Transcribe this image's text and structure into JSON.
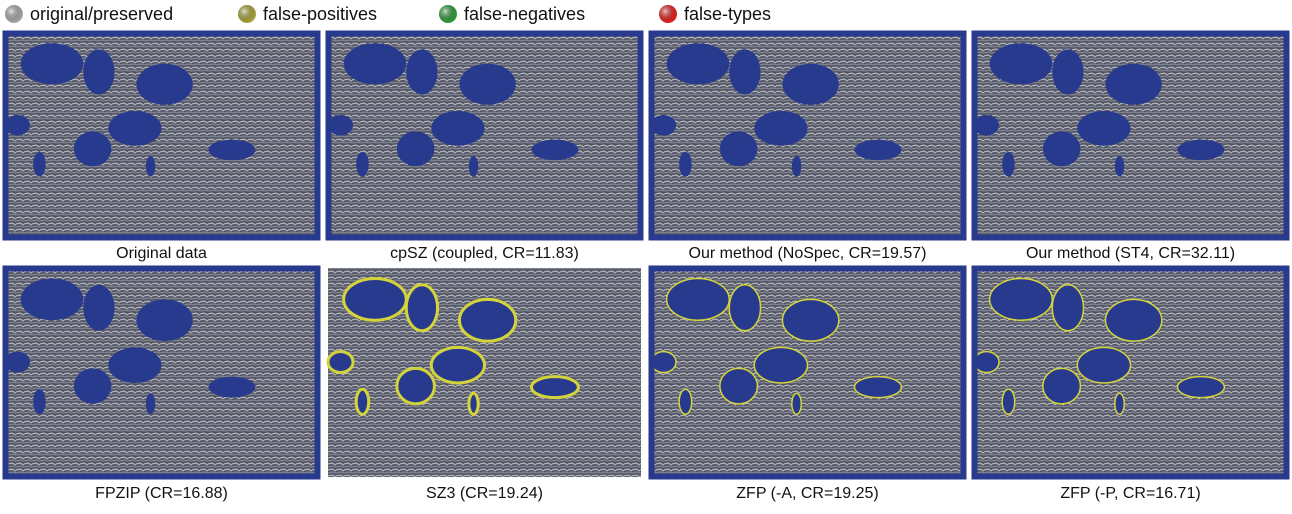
{
  "legend": [
    {
      "label": "original/preserved",
      "color": "#a8a8a8"
    },
    {
      "label": "false-positives",
      "color": "#a8a23a"
    },
    {
      "label": "false-negatives",
      "color": "#2e9a3c"
    },
    {
      "label": "false-types",
      "color": "#e0201e"
    }
  ],
  "panels": [
    {
      "caption": "Original data"
    },
    {
      "caption": "cpSZ (coupled, CR=11.83)"
    },
    {
      "caption": "Our method (NoSpec, CR=19.57)"
    },
    {
      "caption": "Our method (ST4, CR=32.11)"
    },
    {
      "caption": "FPZIP (CR=16.88)"
    },
    {
      "caption": "SZ3 (CR=19.24)"
    },
    {
      "caption": "ZFP (-A, CR=19.25)"
    },
    {
      "caption": "ZFP (-P, CR=16.71)"
    }
  ]
}
